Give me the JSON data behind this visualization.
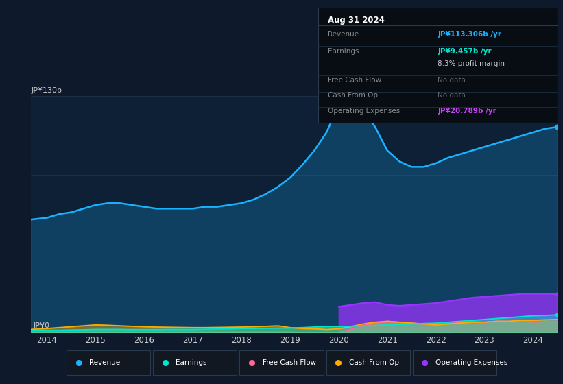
{
  "bg_color": "#0e1a2b",
  "plot_bg_color": "#0d2035",
  "tooltip_bg": "#080d14",
  "tooltip_border": "#2a3a4a",
  "title_date": "Aug 31 2024",
  "ylabel_top": "JP¥130b",
  "ylabel_bottom": "JP¥0",
  "years": [
    2013.67,
    2014.0,
    2014.25,
    2014.5,
    2014.75,
    2015.0,
    2015.25,
    2015.5,
    2015.75,
    2016.0,
    2016.25,
    2016.5,
    2016.75,
    2017.0,
    2017.25,
    2017.5,
    2017.75,
    2018.0,
    2018.25,
    2018.5,
    2018.75,
    2019.0,
    2019.25,
    2019.5,
    2019.75,
    2020.0,
    2020.25,
    2020.5,
    2020.75,
    2021.0,
    2021.25,
    2021.5,
    2021.75,
    2022.0,
    2022.25,
    2022.5,
    2022.75,
    2023.0,
    2023.25,
    2023.5,
    2023.75,
    2024.0,
    2024.25,
    2024.5
  ],
  "revenue": [
    62,
    63,
    65,
    66,
    68,
    70,
    71,
    71,
    70,
    69,
    68,
    68,
    68,
    68,
    69,
    69,
    70,
    71,
    73,
    76,
    80,
    85,
    92,
    100,
    110,
    125,
    128,
    122,
    113,
    100,
    94,
    91,
    91,
    93,
    96,
    98,
    100,
    102,
    104,
    106,
    108,
    110,
    112,
    113
  ],
  "earnings": [
    1.0,
    1.0,
    1.0,
    1.2,
    1.3,
    1.5,
    1.5,
    1.5,
    1.4,
    1.4,
    1.4,
    1.5,
    1.5,
    1.5,
    1.6,
    1.7,
    1.8,
    2.0,
    2.0,
    2.1,
    2.2,
    2.3,
    2.5,
    2.8,
    3.0,
    3.0,
    3.2,
    3.5,
    3.7,
    4.0,
    4.2,
    4.5,
    4.8,
    5.0,
    5.5,
    6.0,
    6.5,
    7.0,
    7.5,
    8.0,
    8.5,
    9.0,
    9.2,
    9.5
  ],
  "cash_from_op": [
    1.5,
    2.0,
    2.5,
    3.0,
    3.5,
    4.0,
    3.8,
    3.5,
    3.2,
    3.0,
    2.8,
    2.7,
    2.6,
    2.5,
    2.5,
    2.6,
    2.7,
    2.8,
    3.0,
    3.2,
    3.5,
    2.5,
    2.0,
    1.8,
    1.5,
    1.8,
    3.0,
    4.5,
    5.5,
    6.0,
    5.5,
    5.0,
    4.5,
    4.0,
    4.5,
    5.0,
    5.5,
    5.5,
    6.0,
    6.0,
    6.5,
    6.5,
    6.8,
    7.0
  ],
  "free_cash_flow": [
    0.0,
    0.0,
    0.0,
    0.0,
    0.0,
    0.0,
    0.0,
    0.0,
    0.0,
    0.0,
    0.0,
    0.0,
    0.0,
    0.0,
    0.0,
    0.0,
    0.0,
    0.0,
    0.0,
    0.0,
    0.0,
    0.0,
    -0.5,
    -1.0,
    -1.5,
    -0.5,
    1.5,
    3.5,
    5.0,
    6.0,
    5.5,
    5.0,
    4.5,
    4.2,
    4.8,
    5.2,
    5.8,
    5.5,
    6.0,
    6.0,
    6.2,
    5.5,
    5.8,
    6.0
  ],
  "operating_expenses": [
    0.0,
    0.0,
    0.0,
    0.0,
    0.0,
    0.0,
    0.0,
    0.0,
    0.0,
    0.0,
    0.0,
    0.0,
    0.0,
    0.0,
    0.0,
    0.0,
    0.0,
    0.0,
    0.0,
    0.0,
    0.0,
    0.0,
    0.0,
    0.0,
    0.0,
    14.0,
    15.0,
    16.0,
    16.5,
    15.0,
    14.5,
    15.0,
    15.5,
    16.0,
    17.0,
    18.0,
    19.0,
    19.5,
    20.0,
    20.5,
    21.0,
    21.0,
    21.0,
    21.0
  ],
  "revenue_color": "#1ab3ff",
  "earnings_color": "#00e5cc",
  "free_cash_flow_color": "#ff6699",
  "cash_from_op_color": "#ffaa00",
  "operating_expenses_color": "#9933ff",
  "legend_items": [
    {
      "label": "Revenue",
      "color": "#1ab3ff"
    },
    {
      "label": "Earnings",
      "color": "#00e5cc"
    },
    {
      "label": "Free Cash Flow",
      "color": "#ff6699"
    },
    {
      "label": "Cash From Op",
      "color": "#ffaa00"
    },
    {
      "label": "Operating Expenses",
      "color": "#9933ff"
    }
  ],
  "xticks": [
    2014,
    2015,
    2016,
    2017,
    2018,
    2019,
    2020,
    2021,
    2022,
    2023,
    2024
  ],
  "ylim": [
    0,
    130
  ],
  "xlim": [
    2013.67,
    2024.5
  ],
  "tooltip": {
    "title": "Aug 31 2024",
    "rows": [
      {
        "label": "Revenue",
        "value": "JP¥113.306b /yr",
        "label_color": "#888888",
        "value_color": "#1ab3ff"
      },
      {
        "label": "Earnings",
        "value": "JP¥9.457b /yr",
        "label_color": "#888888",
        "value_color": "#00e5cc"
      },
      {
        "label": "",
        "value": "8.3% profit margin",
        "label_color": "#888888",
        "value_color": "#cccccc"
      },
      {
        "label": "Free Cash Flow",
        "value": "No data",
        "label_color": "#888888",
        "value_color": "#666666"
      },
      {
        "label": "Cash From Op",
        "value": "No data",
        "label_color": "#888888",
        "value_color": "#666666"
      },
      {
        "label": "Operating Expenses",
        "value": "JP¥20.789b /yr",
        "label_color": "#888888",
        "value_color": "#cc44ff"
      }
    ]
  }
}
